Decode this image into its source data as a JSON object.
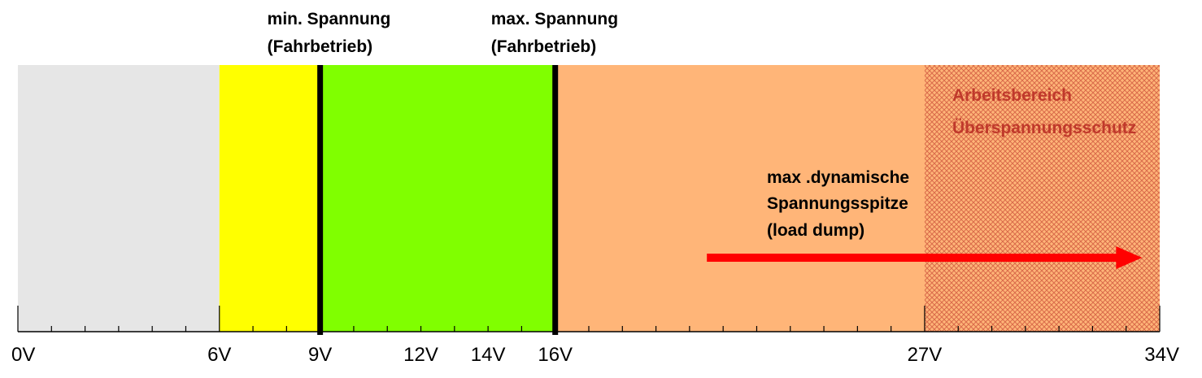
{
  "scale": {
    "min_volts": 0,
    "max_volts": 34,
    "tick_labels": [
      {
        "volts": 0,
        "label": "0V"
      },
      {
        "volts": 6,
        "label": "6V"
      },
      {
        "volts": 9,
        "label": "9V"
      },
      {
        "volts": 12,
        "label": "12V"
      },
      {
        "volts": 14,
        "label": "14V"
      },
      {
        "volts": 16,
        "label": "16V"
      },
      {
        "volts": 27,
        "label": "27V"
      },
      {
        "volts": 34,
        "label": "34V"
      }
    ],
    "minor_tick_step_volts": 1
  },
  "zones": [
    {
      "id": "off",
      "from": 0,
      "to": 6,
      "color": "#e6e6e6"
    },
    {
      "id": "low",
      "from": 6,
      "to": 9,
      "color": "#ffff00"
    },
    {
      "id": "operating",
      "from": 9,
      "to": 16,
      "color": "#80ff00"
    },
    {
      "id": "overvoltage",
      "from": 16,
      "to": 34,
      "color": "#ffb578"
    }
  ],
  "protection_zone": {
    "from": 27,
    "to": 34,
    "color": "#e07050",
    "pattern": "crosshatch",
    "label_line1": "Arbeitsbereich",
    "label_line2": "Überspannungsschutz"
  },
  "markers": [
    {
      "volts": 9,
      "label_line1": "min. Spannung",
      "label_line2": "(Fahrbetrieb)"
    },
    {
      "volts": 16,
      "label_line1": "max. Spannung",
      "label_line2": "(Fahrbetrieb)"
    }
  ],
  "load_dump": {
    "from_volts": 21,
    "to_volts": 33.5,
    "color": "#ff0000",
    "label_line1": "max .dynamische",
    "label_line2": "Spannungsspitze",
    "label_line3": "(load dump)"
  }
}
